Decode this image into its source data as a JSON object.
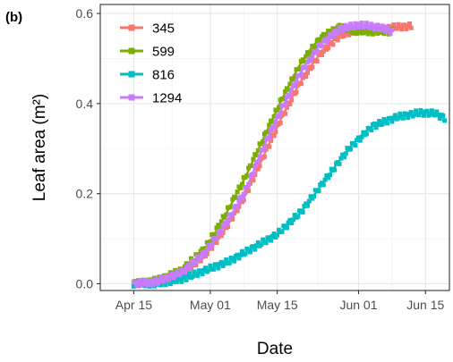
{
  "panel_label": "(b)",
  "chart_data": {
    "type": "scatter",
    "title": "",
    "xlabel": "Date",
    "ylabel": "Leaf area (m²)",
    "x_range": [
      "2016-04-08",
      "2016-06-20"
    ],
    "ylim": [
      -0.015,
      0.62
    ],
    "x_ticks": [
      {
        "date": "2016-04-15",
        "label": "Apr 15"
      },
      {
        "date": "2016-05-01",
        "label": "May 01"
      },
      {
        "date": "2016-05-15",
        "label": "May 15"
      },
      {
        "date": "2016-06-01",
        "label": "Jun 01"
      },
      {
        "date": "2016-06-15",
        "label": "Jun 15"
      }
    ],
    "y_ticks": [
      {
        "value": 0.0,
        "label": "0.0"
      },
      {
        "value": 0.2,
        "label": "0.2"
      },
      {
        "value": 0.4,
        "label": "0.4"
      },
      {
        "value": 0.6,
        "label": "0.6"
      }
    ],
    "grid": true,
    "legend_position": "top-left",
    "series": [
      {
        "name": "345",
        "color": "#F8766D",
        "points": [
          [
            "2016-04-15",
            0.0
          ],
          [
            "2016-04-20",
            0.005
          ],
          [
            "2016-04-25",
            0.02
          ],
          [
            "2016-04-30",
            0.065
          ],
          [
            "2016-05-04",
            0.12
          ],
          [
            "2016-05-08",
            0.19
          ],
          [
            "2016-05-12",
            0.28
          ],
          [
            "2016-05-16",
            0.37
          ],
          [
            "2016-05-20",
            0.45
          ],
          [
            "2016-05-24",
            0.51
          ],
          [
            "2016-05-28",
            0.55
          ],
          [
            "2016-06-01",
            0.565
          ],
          [
            "2016-06-05",
            0.565
          ],
          [
            "2016-06-09",
            0.57
          ],
          [
            "2016-06-12",
            0.572
          ]
        ]
      },
      {
        "name": "599",
        "color": "#7CAE00",
        "points": [
          [
            "2016-04-15",
            0.0
          ],
          [
            "2016-04-20",
            0.008
          ],
          [
            "2016-04-25",
            0.03
          ],
          [
            "2016-04-30",
            0.08
          ],
          [
            "2016-05-04",
            0.15
          ],
          [
            "2016-05-08",
            0.23
          ],
          [
            "2016-05-12",
            0.32
          ],
          [
            "2016-05-16",
            0.41
          ],
          [
            "2016-05-20",
            0.49
          ],
          [
            "2016-05-24",
            0.545
          ],
          [
            "2016-05-28",
            0.57
          ],
          [
            "2016-06-01",
            0.56
          ],
          [
            "2016-06-05",
            0.56
          ],
          [
            "2016-06-08",
            0.56
          ]
        ]
      },
      {
        "name": "816",
        "color": "#00BFC4",
        "points": [
          [
            "2016-04-15",
            0.0
          ],
          [
            "2016-04-20",
            0.0
          ],
          [
            "2016-04-25",
            0.01
          ],
          [
            "2016-04-30",
            0.03
          ],
          [
            "2016-05-05",
            0.05
          ],
          [
            "2016-05-10",
            0.08
          ],
          [
            "2016-05-15",
            0.11
          ],
          [
            "2016-05-20",
            0.16
          ],
          [
            "2016-05-25",
            0.23
          ],
          [
            "2016-05-30",
            0.3
          ],
          [
            "2016-06-04",
            0.35
          ],
          [
            "2016-06-09",
            0.37
          ],
          [
            "2016-06-14",
            0.38
          ],
          [
            "2016-06-17",
            0.378
          ],
          [
            "2016-06-19",
            0.368
          ]
        ]
      },
      {
        "name": "1294",
        "color": "#C77CFF",
        "points": [
          [
            "2016-04-15",
            0.0
          ],
          [
            "2016-04-20",
            0.005
          ],
          [
            "2016-04-25",
            0.025
          ],
          [
            "2016-04-30",
            0.07
          ],
          [
            "2016-05-04",
            0.13
          ],
          [
            "2016-05-08",
            0.2
          ],
          [
            "2016-05-12",
            0.3
          ],
          [
            "2016-05-16",
            0.39
          ],
          [
            "2016-05-20",
            0.47
          ],
          [
            "2016-05-24",
            0.53
          ],
          [
            "2016-05-28",
            0.565
          ],
          [
            "2016-06-01",
            0.575
          ],
          [
            "2016-06-05",
            0.57
          ],
          [
            "2016-06-08",
            0.56
          ]
        ]
      }
    ]
  }
}
